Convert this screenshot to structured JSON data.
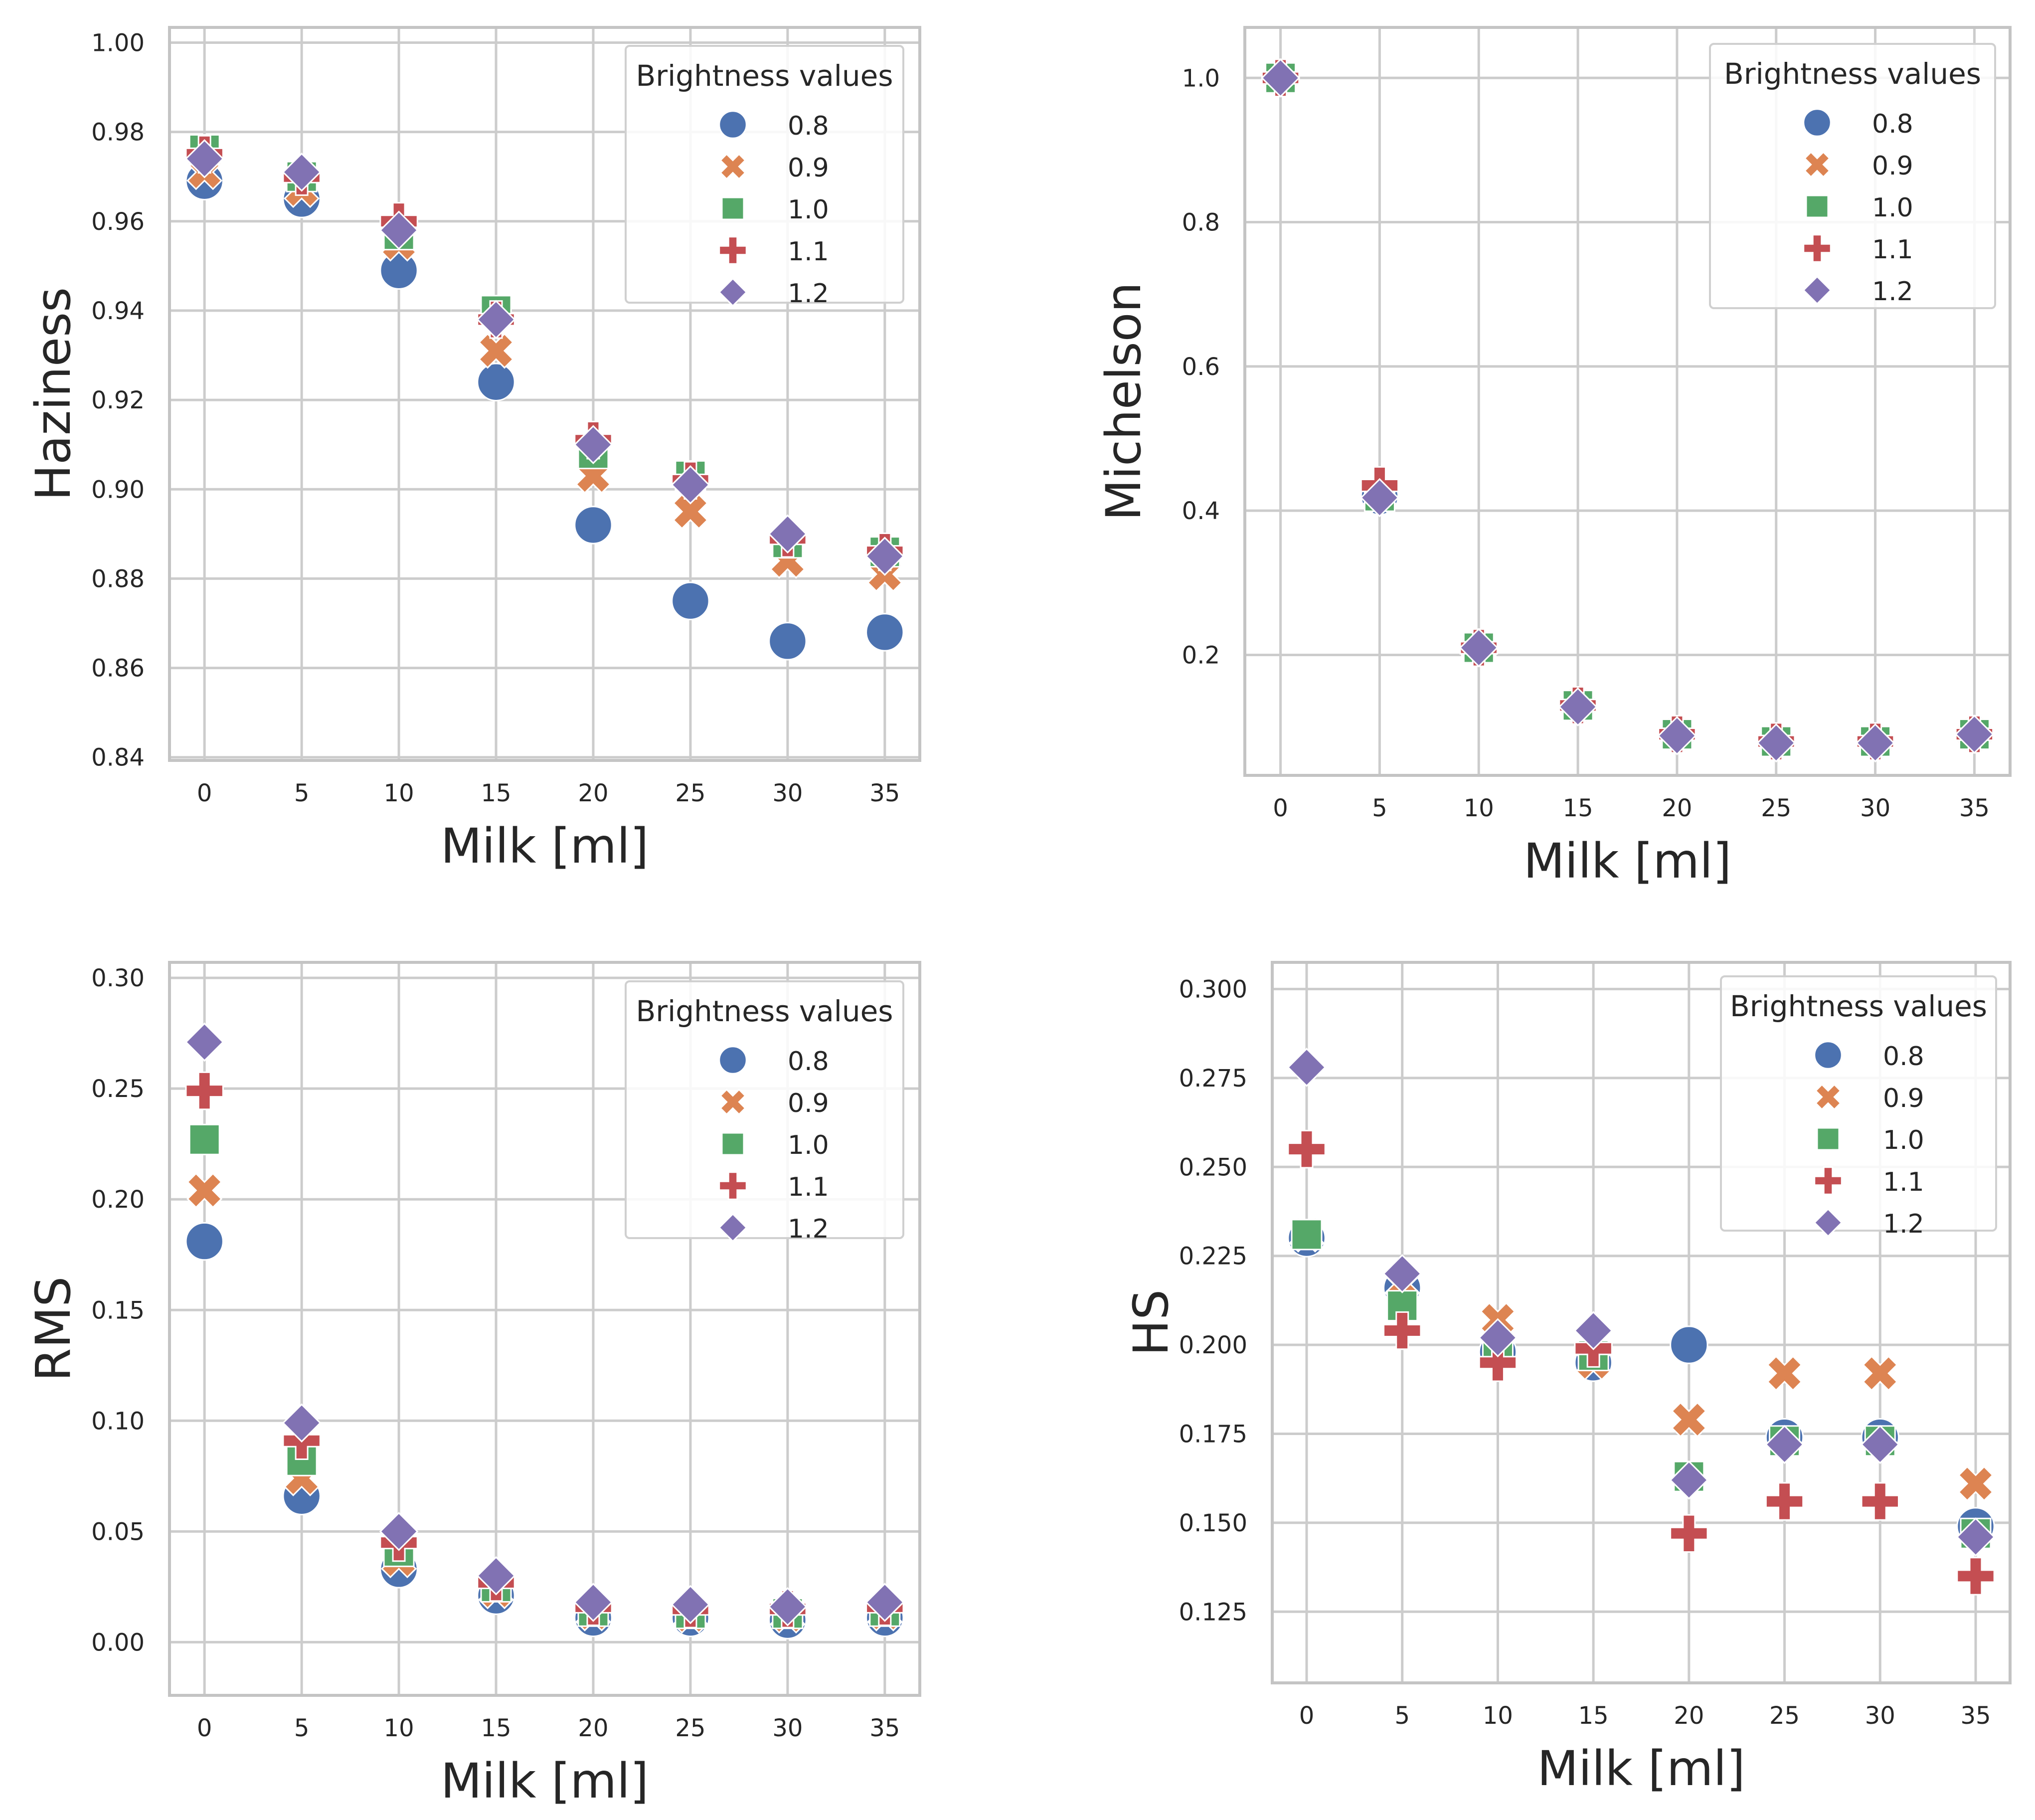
{
  "chart_data": [
    {
      "type": "scatter",
      "ylabel": "Haziness",
      "xlabel": "Milk [ml]",
      "x": [
        0,
        5,
        10,
        15,
        20,
        25,
        30,
        35
      ],
      "xticks": [
        "0",
        "5",
        "10",
        "15",
        "20",
        "25",
        "30",
        "35"
      ],
      "xlim": [
        -1.8,
        36.8
      ],
      "ylim": [
        0.8393,
        1.0034
      ],
      "yticks": [
        "0.84",
        "0.86",
        "0.88",
        "0.90",
        "0.92",
        "0.94",
        "0.96",
        "0.98",
        "1.00"
      ],
      "ytick_values": [
        0.84,
        0.86,
        0.88,
        0.9,
        0.92,
        0.94,
        0.96,
        0.98,
        1.0
      ],
      "grid": true,
      "legend": {
        "title": "Brightness values",
        "position": "top-right"
      },
      "series": [
        {
          "name": "0.8",
          "marker": "circle",
          "color": "#4c72b0",
          "values": [
            0.969,
            0.965,
            0.949,
            0.924,
            0.892,
            0.875,
            0.866,
            0.868
          ]
        },
        {
          "name": "0.9",
          "marker": "x",
          "color": "#dd8452",
          "values": [
            0.971,
            0.967,
            0.955,
            0.931,
            0.903,
            0.895,
            0.884,
            0.881
          ]
        },
        {
          "name": "1.0",
          "marker": "square",
          "color": "#55a868",
          "values": [
            0.976,
            0.97,
            0.957,
            0.94,
            0.908,
            0.903,
            0.888,
            0.886
          ]
        },
        {
          "name": "1.1",
          "marker": "plus",
          "color": "#c44e52",
          "values": [
            0.975,
            0.97,
            0.96,
            0.938,
            0.911,
            0.902,
            0.889,
            0.886
          ]
        },
        {
          "name": "1.2",
          "marker": "diamond",
          "color": "#8172b3",
          "values": [
            0.974,
            0.971,
            0.958,
            0.938,
            0.91,
            0.901,
            0.89,
            0.885
          ]
        }
      ]
    },
    {
      "type": "scatter",
      "ylabel": "Michelson",
      "xlabel": "Milk [ml]",
      "x": [
        0,
        5,
        10,
        15,
        20,
        25,
        30,
        35
      ],
      "xticks": [
        "0",
        "5",
        "10",
        "15",
        "20",
        "25",
        "30",
        "35"
      ],
      "xlim": [
        -1.8,
        36.8
      ],
      "ylim": [
        0.033,
        1.07
      ],
      "yticks": [
        "0.2",
        "0.4",
        "0.6",
        "0.8",
        "1.0"
      ],
      "ytick_values": [
        0.2,
        0.4,
        0.6,
        0.8,
        1.0
      ],
      "grid": true,
      "legend": {
        "title": "Brightness values",
        "position": "top-right"
      },
      "series": [
        {
          "name": "0.8",
          "marker": "circle",
          "color": "#4c72b0",
          "values": [
            1.0,
            0.42,
            0.21,
            0.13,
            0.09,
            0.08,
            0.08,
            0.09
          ]
        },
        {
          "name": "0.9",
          "marker": "x",
          "color": "#dd8452",
          "values": [
            1.0,
            0.42,
            0.21,
            0.13,
            0.09,
            0.08,
            0.08,
            0.09
          ]
        },
        {
          "name": "1.0",
          "marker": "square",
          "color": "#55a868",
          "values": [
            1.0,
            0.42,
            0.21,
            0.13,
            0.09,
            0.08,
            0.08,
            0.09
          ]
        },
        {
          "name": "1.1",
          "marker": "plus",
          "color": "#c44e52",
          "values": [
            1.0,
            0.435,
            0.21,
            0.13,
            0.09,
            0.08,
            0.08,
            0.09
          ]
        },
        {
          "name": "1.2",
          "marker": "diamond",
          "color": "#8172b3",
          "values": [
            1.0,
            0.418,
            0.21,
            0.128,
            0.088,
            0.078,
            0.078,
            0.09
          ]
        }
      ]
    },
    {
      "type": "scatter",
      "ylabel": "RMS",
      "xlabel": "Milk [ml]",
      "x": [
        0,
        5,
        10,
        15,
        20,
        25,
        30,
        35
      ],
      "xticks": [
        "0",
        "5",
        "10",
        "15",
        "20",
        "25",
        "30",
        "35"
      ],
      "xlim": [
        -1.8,
        36.8
      ],
      "ylim": [
        -0.024,
        0.307
      ],
      "yticks": [
        "0.00",
        "0.05",
        "0.10",
        "0.15",
        "0.20",
        "0.25",
        "0.30"
      ],
      "ytick_values": [
        0.0,
        0.05,
        0.1,
        0.15,
        0.2,
        0.25,
        0.3
      ],
      "grid": true,
      "legend": {
        "title": "Brightness values",
        "position": "top-right"
      },
      "series": [
        {
          "name": "0.8",
          "marker": "circle",
          "color": "#4c72b0",
          "values": [
            0.181,
            0.066,
            0.033,
            0.021,
            0.011,
            0.011,
            0.01,
            0.011
          ]
        },
        {
          "name": "0.9",
          "marker": "x",
          "color": "#dd8452",
          "values": [
            0.204,
            0.074,
            0.037,
            0.023,
            0.013,
            0.012,
            0.012,
            0.013
          ]
        },
        {
          "name": "1.0",
          "marker": "square",
          "color": "#55a868",
          "values": [
            0.227,
            0.082,
            0.041,
            0.025,
            0.014,
            0.013,
            0.013,
            0.014
          ]
        },
        {
          "name": "1.1",
          "marker": "plus",
          "color": "#c44e52",
          "values": [
            0.249,
            0.091,
            0.045,
            0.027,
            0.016,
            0.015,
            0.015,
            0.016
          ]
        },
        {
          "name": "1.2",
          "marker": "diamond",
          "color": "#8172b3",
          "values": [
            0.271,
            0.099,
            0.05,
            0.03,
            0.018,
            0.017,
            0.016,
            0.018
          ]
        }
      ]
    },
    {
      "type": "scatter",
      "ylabel": "HS",
      "xlabel": "Milk [ml]",
      "x": [
        0,
        5,
        10,
        15,
        20,
        25,
        30,
        35
      ],
      "xticks": [
        "0",
        "5",
        "10",
        "15",
        "20",
        "25",
        "30",
        "35"
      ],
      "xlim": [
        -1.8,
        36.8
      ],
      "ylim": [
        0.105,
        0.3075
      ],
      "yticks": [
        "0.125",
        "0.150",
        "0.175",
        "0.200",
        "0.225",
        "0.250",
        "0.275",
        "0.300"
      ],
      "ytick_values": [
        0.125,
        0.15,
        0.175,
        0.2,
        0.225,
        0.25,
        0.275,
        0.3
      ],
      "grid": true,
      "legend": {
        "title": "Brightness values",
        "position": "top-right"
      },
      "series": [
        {
          "name": "0.8",
          "marker": "circle",
          "color": "#4c72b0",
          "values": [
            0.23,
            0.216,
            0.198,
            0.195,
            0.2,
            0.174,
            0.174,
            0.149
          ]
        },
        {
          "name": "0.9",
          "marker": "x",
          "color": "#dd8452",
          "values": [
            0.231,
            0.217,
            0.207,
            0.195,
            0.179,
            0.192,
            0.192,
            0.161
          ]
        },
        {
          "name": "1.0",
          "marker": "square",
          "color": "#55a868",
          "values": [
            0.231,
            0.211,
            0.199,
            0.197,
            0.163,
            0.173,
            0.173,
            0.147
          ]
        },
        {
          "name": "1.1",
          "marker": "plus",
          "color": "#c44e52",
          "values": [
            0.255,
            0.204,
            0.195,
            0.199,
            0.147,
            0.156,
            0.156,
            0.135
          ]
        },
        {
          "name": "1.2",
          "marker": "diamond",
          "color": "#8172b3",
          "values": [
            0.278,
            0.22,
            0.202,
            0.204,
            0.162,
            0.172,
            0.172,
            0.146
          ]
        }
      ]
    }
  ]
}
